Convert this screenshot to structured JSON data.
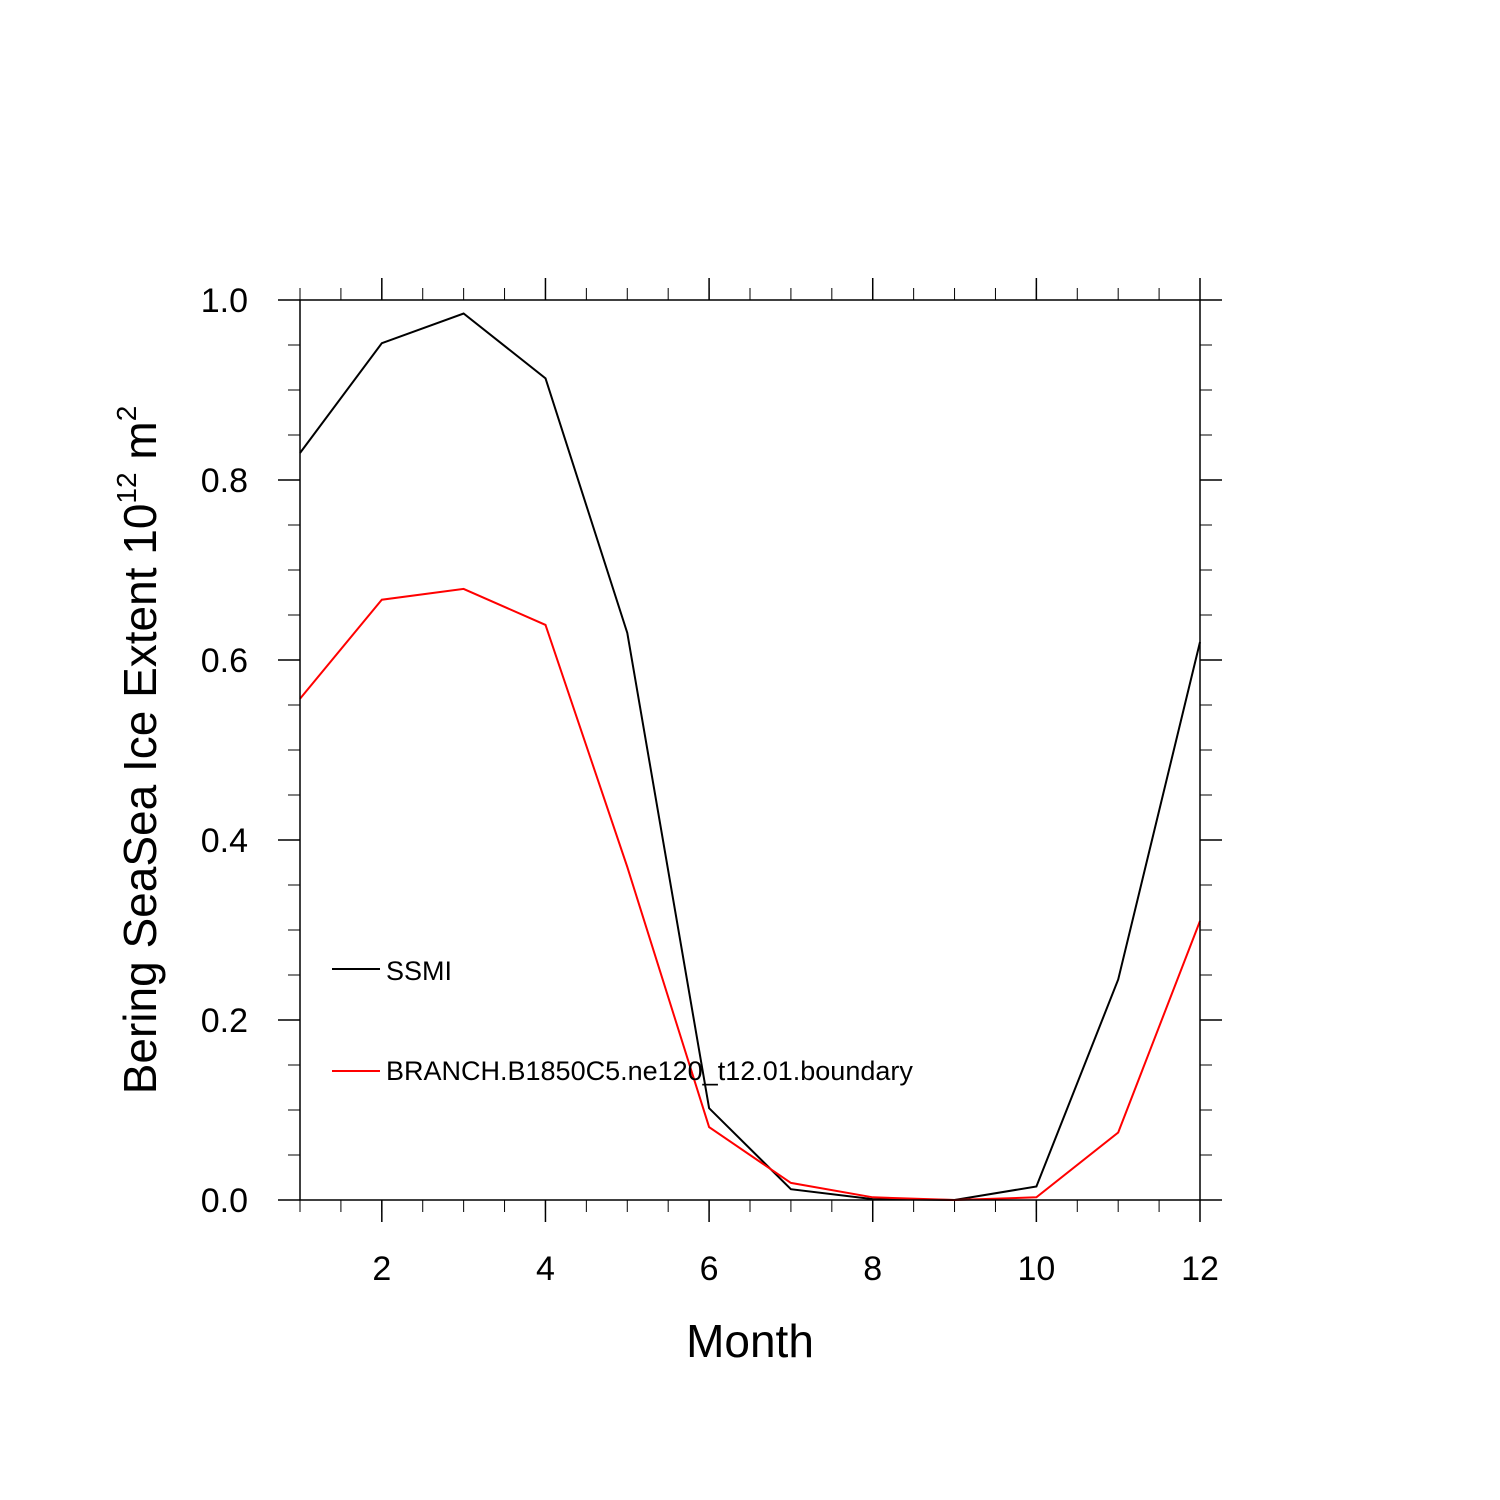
{
  "chart_data": {
    "type": "line",
    "xlabel": "Month",
    "ylabel_main": "Bering SeaSea Ice Extent 10",
    "ylabel_exp": "12",
    "ylabel_unit": " m",
    "ylabel_unit_exp": "2",
    "xlim": [
      1,
      12
    ],
    "ylim": [
      0.0,
      1.0
    ],
    "xticks": [
      2,
      4,
      6,
      8,
      10,
      12
    ],
    "xtick_labels": [
      "2",
      "4",
      "6",
      "8",
      "10",
      "12"
    ],
    "yticks": [
      0.0,
      0.2,
      0.4,
      0.6,
      0.8,
      1.0
    ],
    "ytick_labels": [
      "0.0",
      "0.2",
      "0.4",
      "0.6",
      "0.8",
      "1.0"
    ],
    "grid": false,
    "legend_position": "center-left",
    "x": [
      1,
      2,
      3,
      4,
      5,
      6,
      7,
      8,
      9,
      10,
      11,
      12
    ],
    "series": [
      {
        "name": "SSMI",
        "color": "#000000",
        "values": [
          0.83,
          0.952,
          0.985,
          0.913,
          0.63,
          0.102,
          0.012,
          0.001,
          0.0,
          0.015,
          0.245,
          0.62
        ]
      },
      {
        "name": "BRANCH.B1850C5.ne120_t12.01.boundary",
        "color": "#ff0000",
        "values": [
          0.557,
          0.667,
          0.679,
          0.639,
          0.37,
          0.081,
          0.019,
          0.003,
          0.0,
          0.003,
          0.075,
          0.31
        ]
      }
    ]
  }
}
